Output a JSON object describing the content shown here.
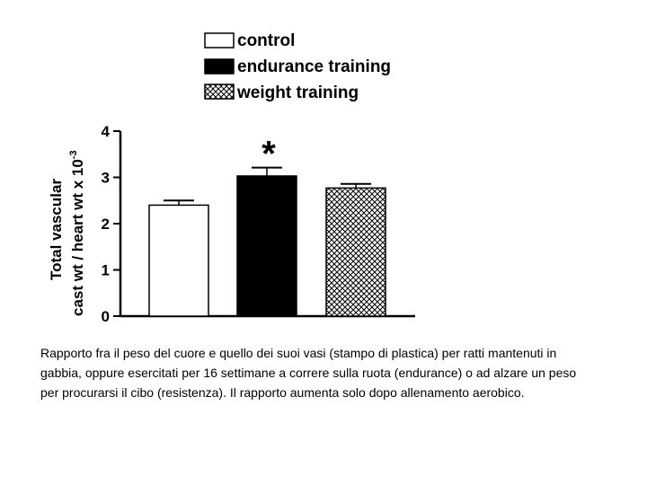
{
  "chart_data": {
    "type": "bar",
    "categories": [
      "control",
      "endurance training",
      "weight training"
    ],
    "values": [
      2.4,
      3.03,
      2.77
    ],
    "errors": [
      0.1,
      0.18,
      0.09
    ],
    "ylabel_line1": "Total vascular",
    "ylabel_line2_main": "cast wt / heart wt x 10",
    "ylabel_line2_sup": "-3",
    "ylim": [
      0,
      4
    ],
    "yticks": [
      "0",
      "1",
      "2",
      "3",
      "4"
    ],
    "annotation": "*",
    "legend_position": "top",
    "fills": [
      "#ffffff",
      "#000000",
      "crosshatch"
    ]
  },
  "caption": "Rapporto fra il peso del cuore e quello dei suoi vasi (stampo di plastica) per ratti mantenuti in gabbia, oppure esercitati per 16 settimane a correre sulla ruota (endurance) o ad alzare un peso per procurarsi il cibo (resistenza). Il rapporto aumenta solo dopo allenamento aerobico."
}
